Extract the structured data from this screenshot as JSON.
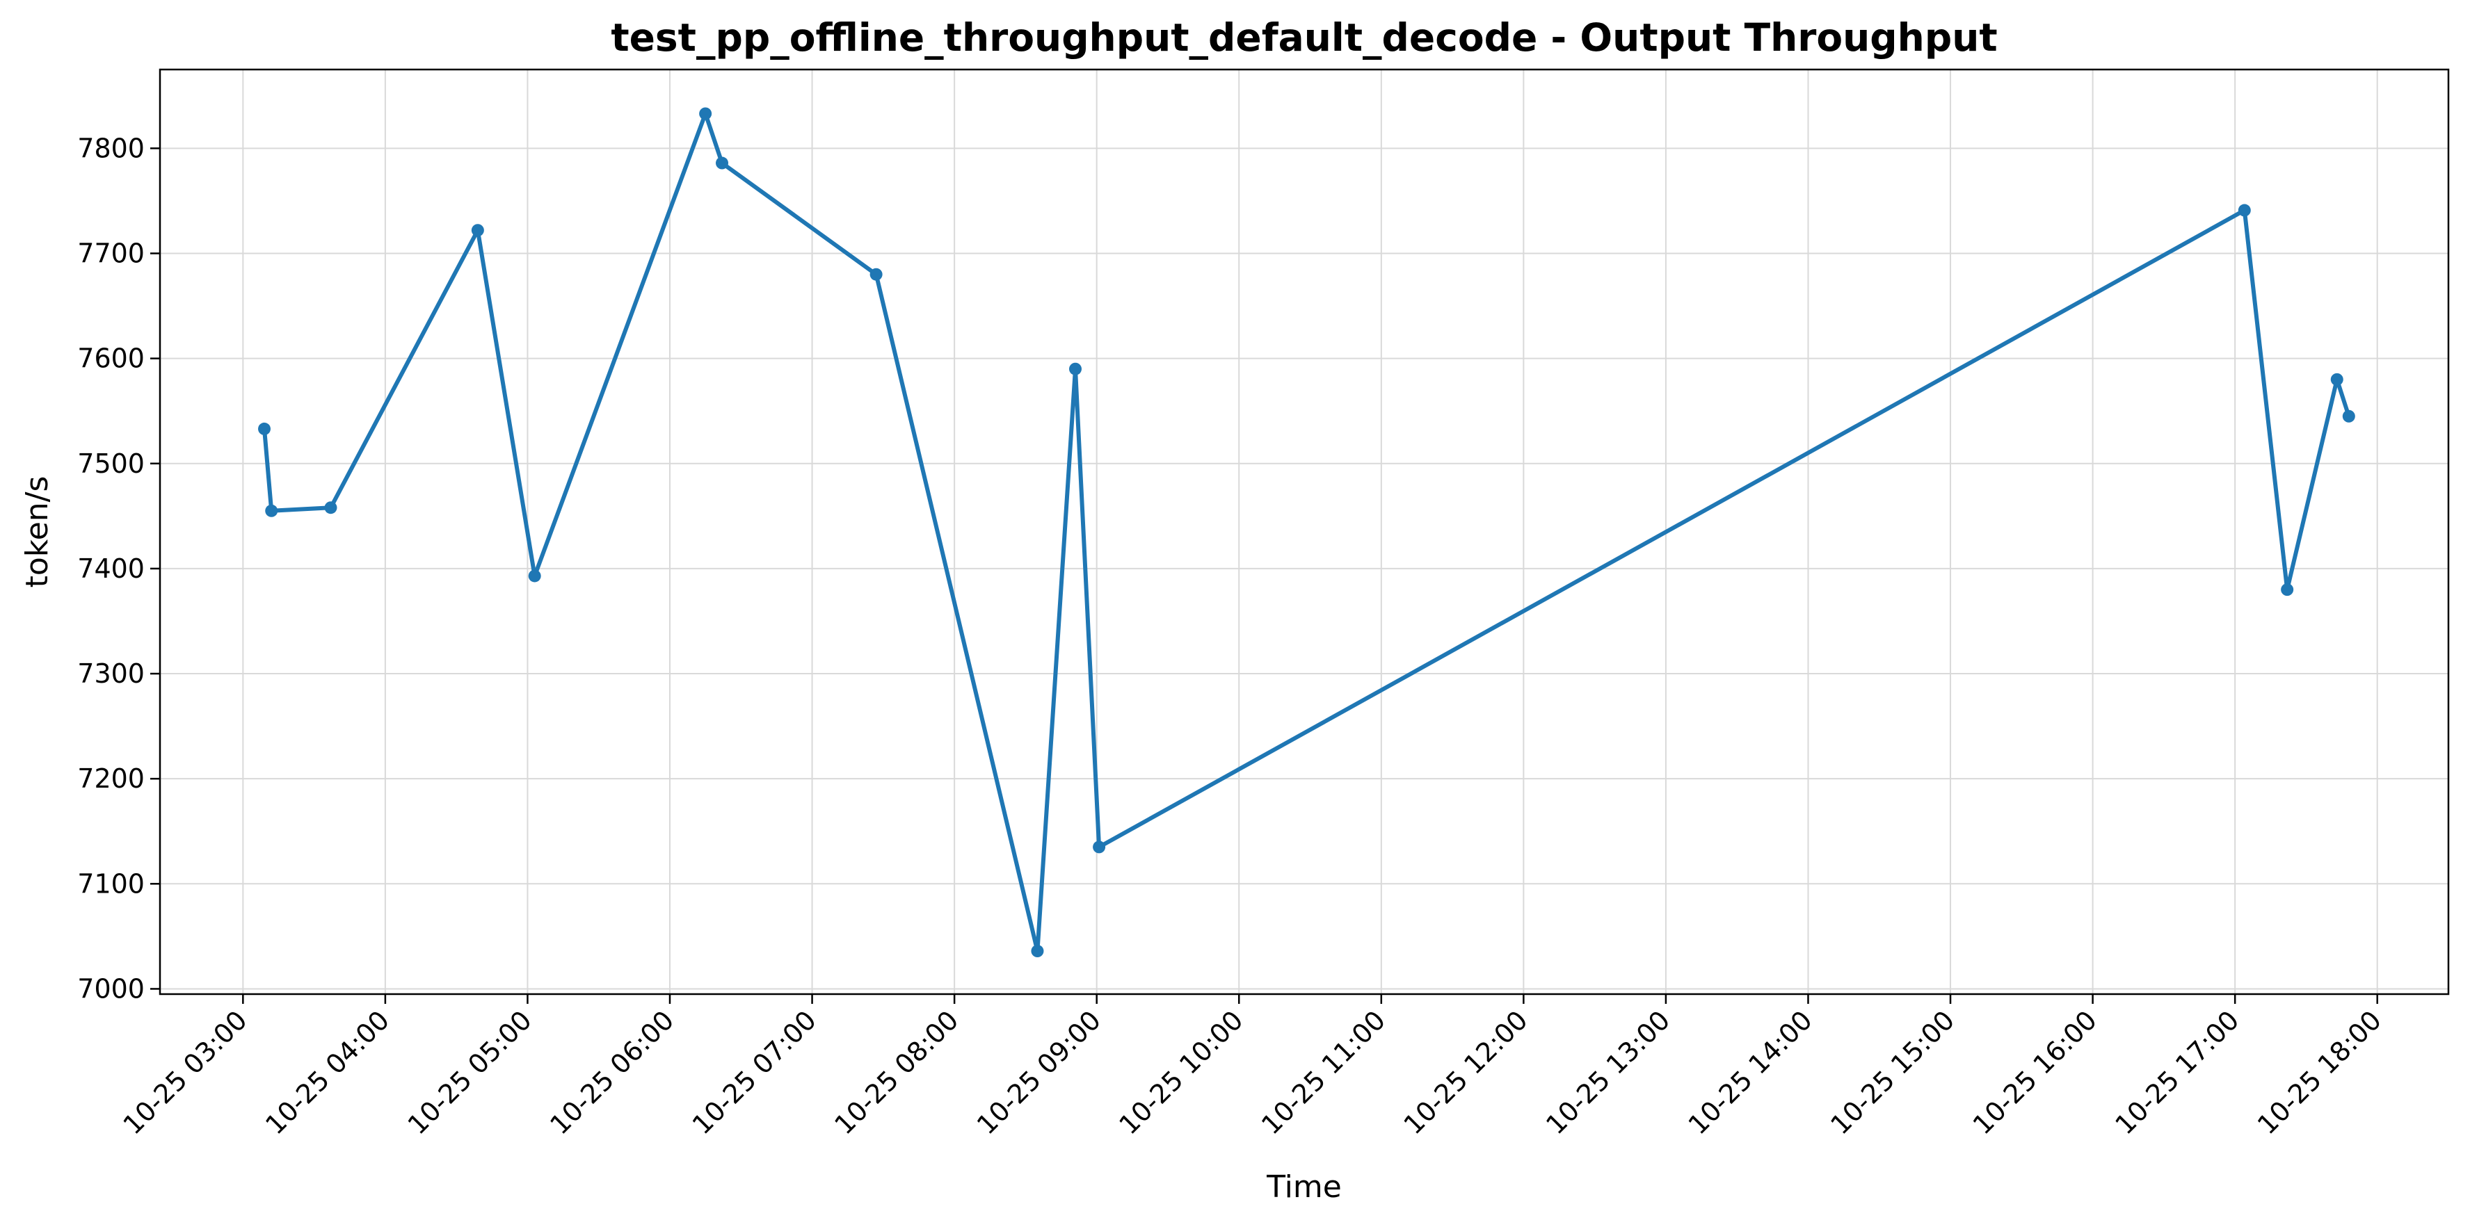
{
  "chart_data": {
    "type": "line",
    "title": "test_pp_offline_throughput_default_decode - Output Throughput",
    "xlabel": "Time",
    "ylabel": "token/s",
    "color": "#1f77b4",
    "grid": true,
    "x_axis_type": "time",
    "xlim": [
      "10-25 02:25",
      "10-25 18:30"
    ],
    "ylim": [
      6995,
      7875
    ],
    "x_ticks": [
      "10-25 03:00",
      "10-25 04:00",
      "10-25 05:00",
      "10-25 06:00",
      "10-25 07:00",
      "10-25 08:00",
      "10-25 09:00",
      "10-25 10:00",
      "10-25 11:00",
      "10-25 12:00",
      "10-25 13:00",
      "10-25 14:00",
      "10-25 15:00",
      "10-25 16:00",
      "10-25 17:00",
      "10-25 18:00"
    ],
    "y_ticks": [
      7000,
      7100,
      7200,
      7300,
      7400,
      7500,
      7600,
      7700,
      7800
    ],
    "series": [
      {
        "points": [
          {
            "x": "10-25 03:09",
            "y": 7533
          },
          {
            "x": "10-25 03:12",
            "y": 7455
          },
          {
            "x": "10-25 03:37",
            "y": 7458
          },
          {
            "x": "10-25 04:39",
            "y": 7722
          },
          {
            "x": "10-25 05:03",
            "y": 7393
          },
          {
            "x": "10-25 06:15",
            "y": 7833
          },
          {
            "x": "10-25 06:22",
            "y": 7786
          },
          {
            "x": "10-25 07:27",
            "y": 7680
          },
          {
            "x": "10-25 08:35",
            "y": 7036
          },
          {
            "x": "10-25 08:51",
            "y": 7590
          },
          {
            "x": "10-25 09:01",
            "y": 7135
          },
          {
            "x": "10-25 17:04",
            "y": 7741
          },
          {
            "x": "10-25 17:22",
            "y": 7380
          },
          {
            "x": "10-25 17:43",
            "y": 7580
          },
          {
            "x": "10-25 17:48",
            "y": 7545
          }
        ]
      }
    ]
  }
}
